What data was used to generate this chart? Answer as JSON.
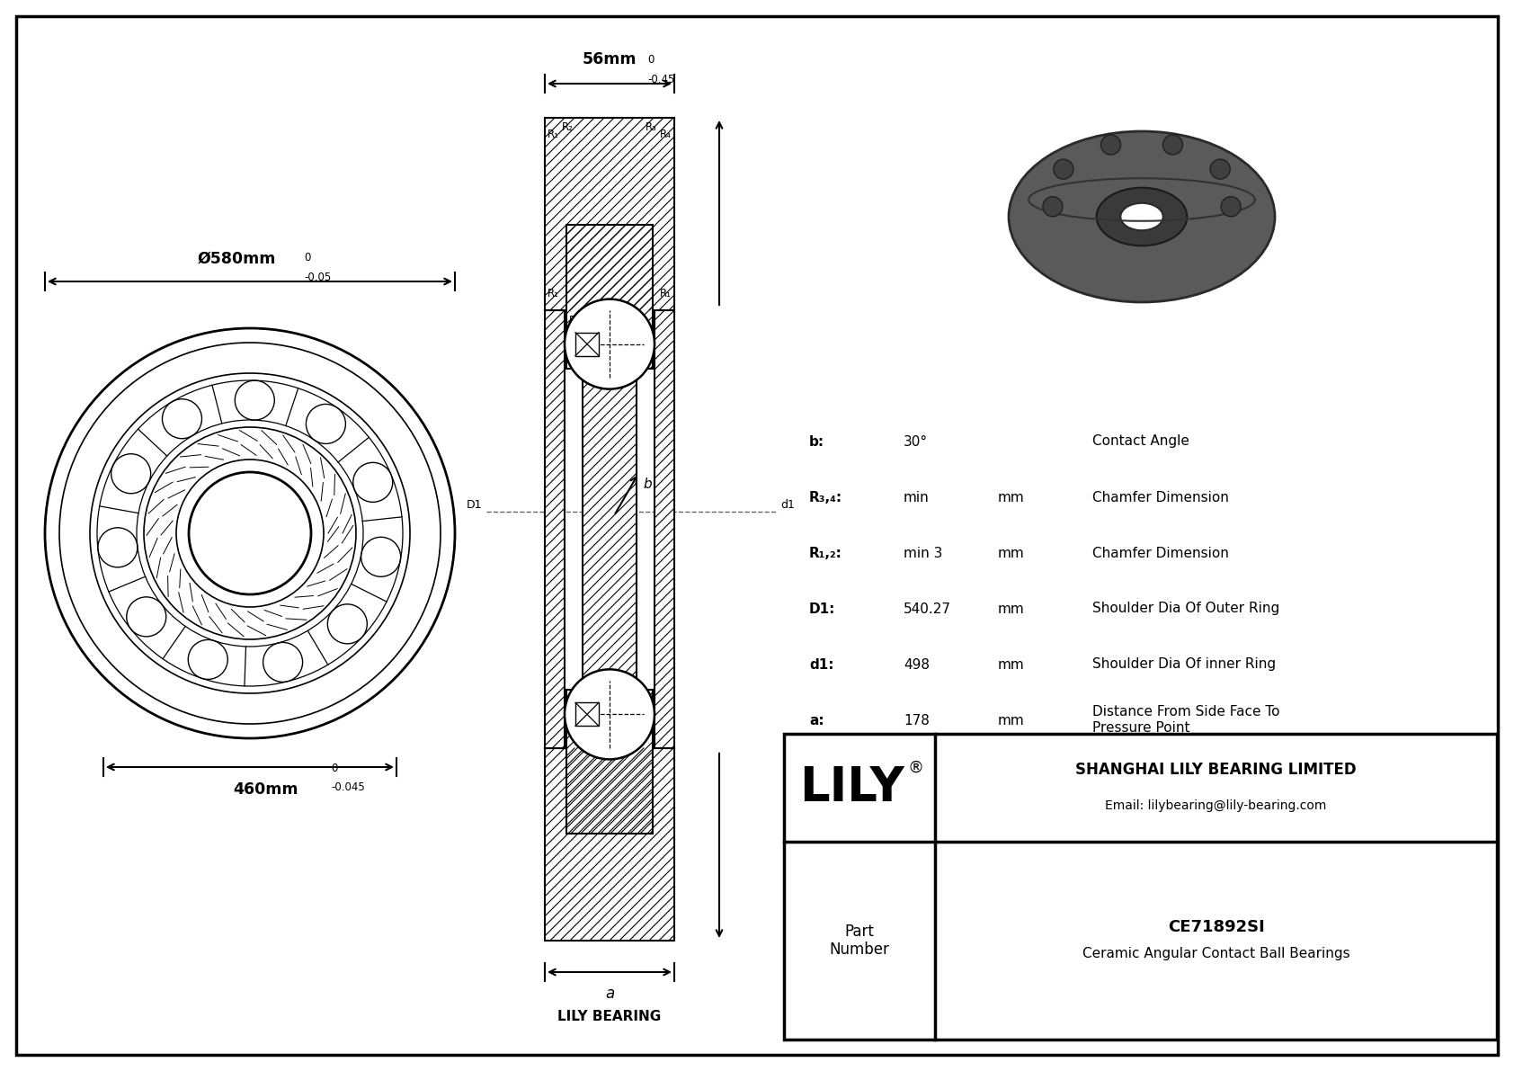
{
  "bg_color": "#ffffff",
  "line_color": "#000000",
  "outer_diameter": "Ø580mm",
  "outer_tol_upper": "0",
  "outer_tol_lower": "-0.05",
  "inner_diameter": "460mm",
  "inner_tol_upper": "0",
  "inner_tol_lower": "-0.045",
  "width": "56mm",
  "width_tol_upper": "0",
  "width_tol_lower": "-0.45",
  "specs": [
    {
      "param": "b:",
      "value": "30°",
      "unit": "",
      "desc": "Contact Angle"
    },
    {
      "param": "R₃,₄:",
      "value": "min",
      "unit": "mm",
      "desc": "Chamfer Dimension"
    },
    {
      "param": "R₁,₂:",
      "value": "min 3",
      "unit": "mm",
      "desc": "Chamfer Dimension"
    },
    {
      "param": "D1:",
      "value": "540.27",
      "unit": "mm",
      "desc": "Shoulder Dia Of Outer Ring"
    },
    {
      "param": "d1:",
      "value": "498",
      "unit": "mm",
      "desc": "Shoulder Dia Of inner Ring"
    },
    {
      "param": "a:",
      "value": "178",
      "unit": "mm",
      "desc": "Distance From Side Face To\nPressure Point"
    }
  ],
  "company_name": "SHANGHAI LILY BEARING LIMITED",
  "company_email": "Email: lilybearing@lily-bearing.com",
  "part_number": "CE71892SI",
  "part_type": "Ceramic Angular Contact Ball Bearings",
  "lily_bearing_text": "LILY BEARING",
  "part_label": "Part\nNumber"
}
